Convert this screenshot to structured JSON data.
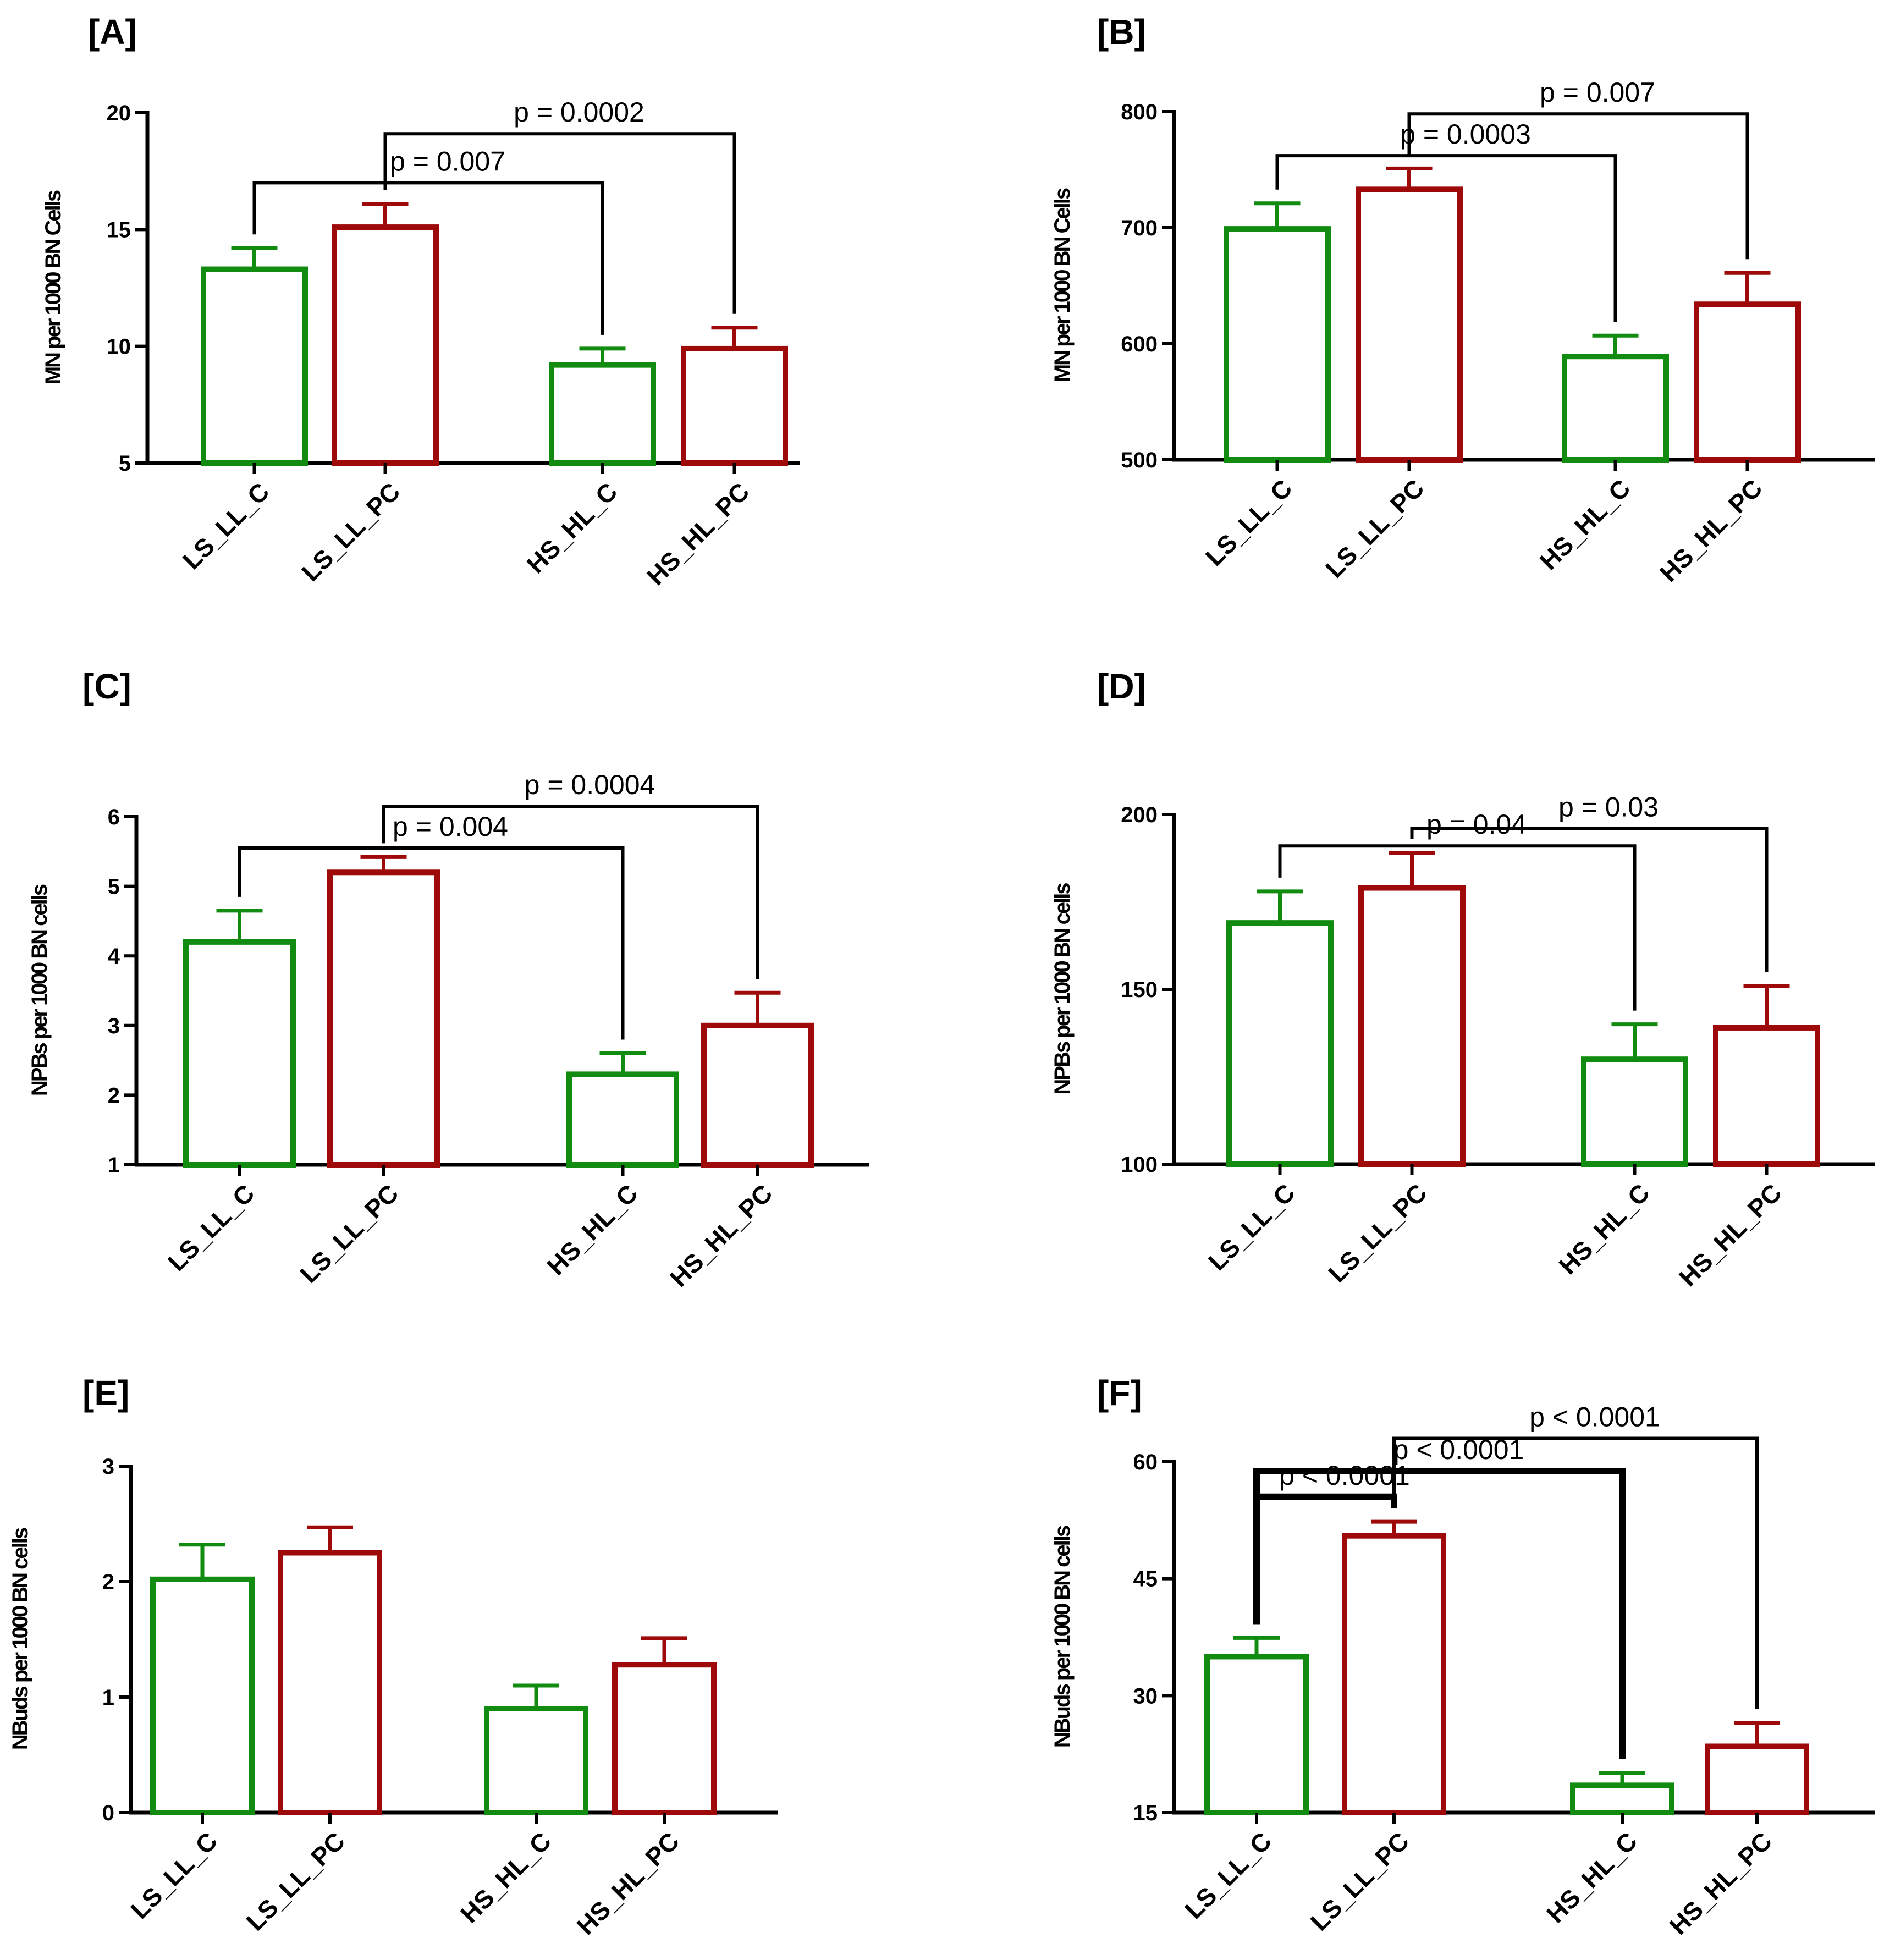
{
  "colors": {
    "control": "#118C10",
    "case": "#9E0A0A",
    "axis": "#000000"
  },
  "chart_data": [
    {
      "panel": "[A]",
      "type": "bar",
      "categories": [
        "LS_LL_C",
        "LS_LL_PC",
        "HS_HL_C",
        "HS_HL_PC"
      ],
      "values": [
        13.3,
        15.1,
        9.2,
        9.9
      ],
      "errors": [
        0.9,
        1.0,
        0.7,
        0.9
      ],
      "ylabel": "MN per 1000 BN Cells",
      "ylim": [
        5,
        20
      ],
      "yticks": [
        "5",
        "10",
        "15",
        "20"
      ],
      "comparisons": [
        {
          "from": 0,
          "to": 2,
          "label": "p = 0.007",
          "y": 17.0,
          "thick": false
        },
        {
          "from": 1,
          "to": 3,
          "label": "p = 0.0002",
          "y": 19.1,
          "thick": false
        }
      ]
    },
    {
      "panel": "[B]",
      "type": "bar",
      "categories": [
        "LS_LL_C",
        "LS_LL_PC",
        "HS_HL_C",
        "HS_HL_PC"
      ],
      "values": [
        699,
        733,
        589,
        634
      ],
      "errors": [
        22,
        18,
        18,
        27
      ],
      "ylabel": "MN per 1000 BN Cells",
      "ylim": [
        500,
        800
      ],
      "yticks": [
        "500",
        "600",
        "700",
        "800"
      ],
      "comparisons": [
        {
          "from": 0,
          "to": 2,
          "label": "p = 0.0003",
          "y": 762,
          "thick": false
        },
        {
          "from": 1,
          "to": 3,
          "label": "p = 0.007",
          "y": 798,
          "thick": false
        }
      ]
    },
    {
      "panel": "[C]",
      "type": "bar",
      "categories": [
        "LS_LL_C",
        "LS_LL_PC",
        "HS_HL_C",
        "HS_HL_PC"
      ],
      "values": [
        4.2,
        5.2,
        2.3,
        3.0
      ],
      "errors": [
        0.45,
        0.22,
        0.3,
        0.47
      ],
      "ylabel": "NPBs per 1000 BN cells",
      "ylim": [
        1,
        6
      ],
      "yticks": [
        "1",
        "2",
        "3",
        "4",
        "5",
        "6"
      ],
      "comparisons": [
        {
          "from": 0,
          "to": 2,
          "label": "p = 0.004",
          "y": 5.55,
          "thick": false
        },
        {
          "from": 1,
          "to": 3,
          "label": "p = 0.0004",
          "y": 6.15,
          "thick": false
        }
      ]
    },
    {
      "panel": "[D]",
      "type": "bar",
      "categories": [
        "LS_LL_C",
        "LS_LL_PC",
        "HS_HL_C",
        "HS_HL_PC"
      ],
      "values": [
        169,
        179,
        130,
        139
      ],
      "errors": [
        9,
        10,
        10,
        12
      ],
      "ylabel": "NPBs per 1000 BN cells",
      "ylim": [
        100,
        200
      ],
      "yticks": [
        "100",
        "150",
        "200"
      ],
      "comparisons": [
        {
          "from": 0,
          "to": 2,
          "label": "p = 0.04",
          "y": 191,
          "thick": false
        },
        {
          "from": 1,
          "to": 3,
          "label": "p = 0.03",
          "y": 196,
          "thick": false
        }
      ]
    },
    {
      "panel": "[E]",
      "type": "bar",
      "categories": [
        "LS_LL_C",
        "LS_LL_PC",
        "HS_HL_C",
        "HS_HL_PC"
      ],
      "values": [
        2.02,
        2.25,
        0.9,
        1.28
      ],
      "errors": [
        0.3,
        0.22,
        0.2,
        0.23
      ],
      "ylabel": "NBuds per 1000 BN cells",
      "ylim": [
        0,
        3
      ],
      "yticks": [
        "0",
        "1",
        "2",
        "3"
      ],
      "comparisons": []
    },
    {
      "panel": "[F]",
      "type": "bar",
      "categories": [
        "LS_LL_C",
        "LS_LL_PC",
        "HS_HL_C",
        "HS_HL_PC"
      ],
      "values": [
        35,
        50.5,
        18.5,
        23.5
      ],
      "errors": [
        2.4,
        1.8,
        1.6,
        3.0
      ],
      "ylabel": "NBuds per 1000 BN cells",
      "ylim": [
        15,
        60
      ],
      "yticks": [
        "15",
        "30",
        "45",
        "60"
      ],
      "comparisons": [
        {
          "from": 0,
          "to": 1,
          "label": "p < 0.0001",
          "y": 55.5,
          "thick": true
        },
        {
          "from": 0,
          "to": 2,
          "label": "p < 0.0001",
          "y": 58.8,
          "thick": true
        },
        {
          "from": 1,
          "to": 3,
          "label": "p < 0.0001",
          "y": 63.0,
          "thick": false
        }
      ]
    }
  ]
}
